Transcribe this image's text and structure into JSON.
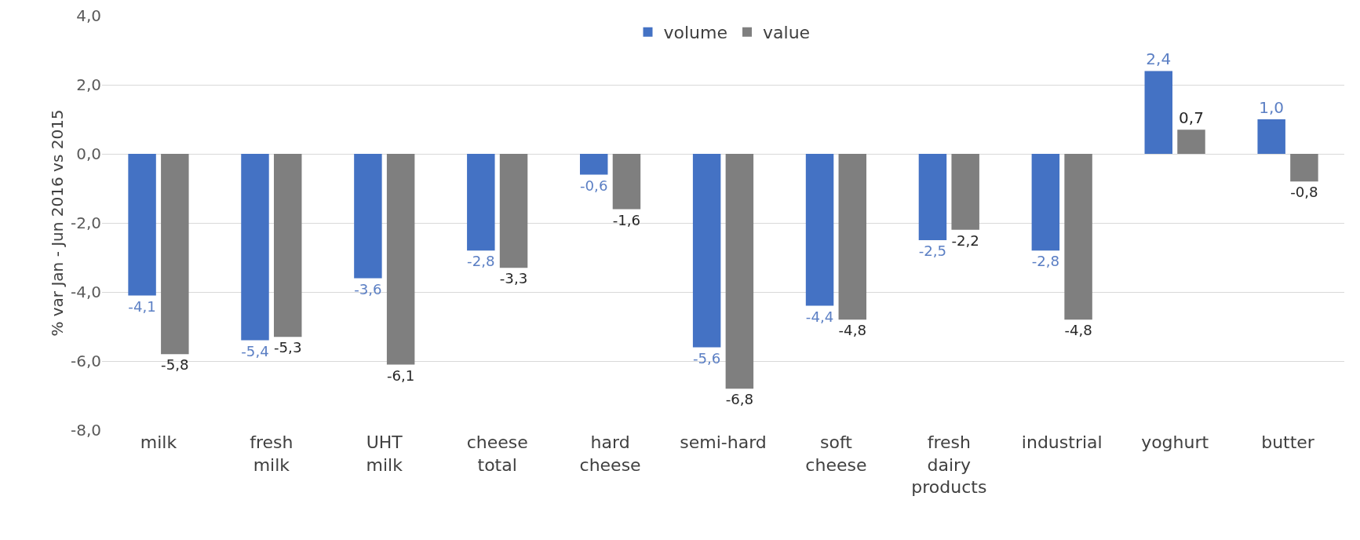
{
  "chart_data": {
    "type": "bar",
    "ylabel": "% var Jan - Jun 2016 vs 2015",
    "categories": [
      "milk",
      "fresh milk",
      "UHT milk",
      "cheese total",
      "hard cheese",
      "semi-hard",
      "soft cheese",
      "fresh dairy products",
      "industrial",
      "yoghurt",
      "butter"
    ],
    "series": [
      {
        "name": "volume",
        "color": "#4472c4",
        "values": [
          -4.1,
          -5.4,
          -3.6,
          -2.8,
          -0.6,
          -5.6,
          -4.4,
          -2.5,
          -2.8,
          2.4,
          1.0
        ],
        "value_labels": [
          "-4,1",
          "-5,4",
          "-3,6",
          "-2,8",
          "-0,6",
          "-5,6",
          "-4,4",
          "-2,5",
          "-2,8",
          "2,4",
          "1,0"
        ]
      },
      {
        "name": "value",
        "color": "#7f7f7f",
        "values": [
          -5.8,
          -5.3,
          -6.1,
          -3.3,
          -1.6,
          -6.8,
          -4.8,
          -2.2,
          -4.8,
          0.7,
          -0.8
        ],
        "value_labels": [
          "-5,8",
          "-5,3",
          "-6,1",
          "-3,3",
          "-1,6",
          "-6,8",
          "-4,8",
          "-2,2",
          "-4,8",
          "0,7",
          "-0,8"
        ]
      }
    ],
    "ylim": [
      -8,
      4
    ],
    "yticks": [
      {
        "value": -8,
        "label": "-8,0"
      },
      {
        "value": -6,
        "label": "-6,0"
      },
      {
        "value": -4,
        "label": "-4,0"
      },
      {
        "value": -2,
        "label": "-2,0"
      },
      {
        "value": 0,
        "label": "0,0"
      },
      {
        "value": 2,
        "label": "2,0"
      },
      {
        "value": 4,
        "label": "4,0"
      }
    ],
    "grid": "y",
    "legend": "top"
  }
}
